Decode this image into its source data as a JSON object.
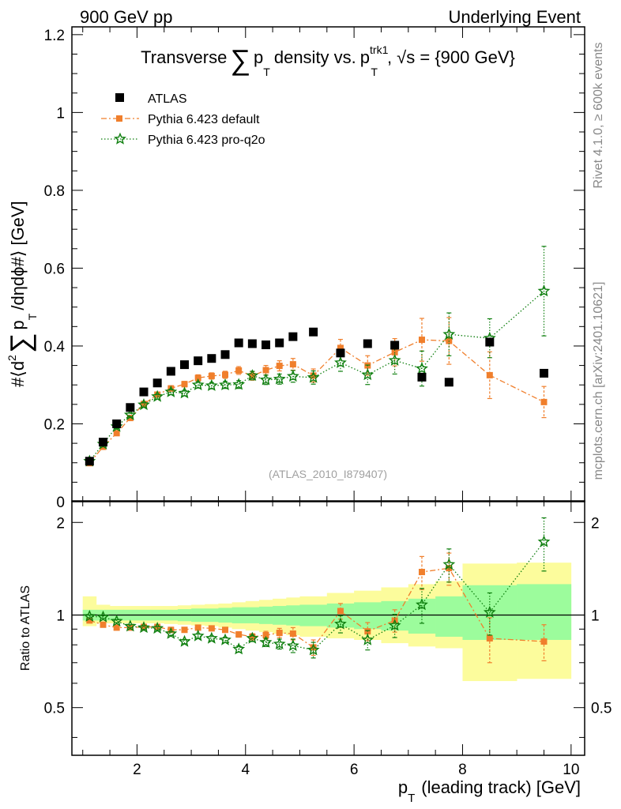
{
  "header": {
    "left": "900 GeV pp",
    "right": "Underlying Event"
  },
  "side": {
    "rivet": "Rivet 4.1.0, ≥ 600k events",
    "mcplots": "mcplots.cern.ch [arXiv:2401.10621]"
  },
  "chart_data": [
    {
      "type": "scatter",
      "title": {
        "prefix": "Transverse",
        "sum_symbol": "∑",
        "var": "p",
        "var_sub": "T",
        "middle": "density vs.",
        "lead": "p",
        "lead_sub": "T",
        "lead_sup": "trk1",
        "sqrt_symbol": "√",
        "energy": "s = {900 GeV}"
      },
      "ylabel": {
        "prefix": "#⟨d",
        "sq": "2",
        "sum_symbol": "∑",
        "var": "p",
        "var_sub": "T",
        "suffix": "/dηdϕ#⟩ [GeV]"
      },
      "xlim": [
        0.8,
        10.25
      ],
      "ylim": [
        0,
        1.22
      ],
      "yticks": [
        {
          "v": 0,
          "label": "0"
        },
        {
          "v": 0.2,
          "label": "0.2"
        },
        {
          "v": 0.4,
          "label": "0.4"
        },
        {
          "v": 0.6,
          "label": "0.6"
        },
        {
          "v": 0.8,
          "label": "0.8"
        },
        {
          "v": 1.0,
          "label": "1"
        },
        {
          "v": 1.2,
          "label": "1.2"
        }
      ],
      "watermark": "(ATLAS_2010_I879407)",
      "legend": {
        "position": "top-left",
        "entries": [
          "ATLAS",
          "Pythia 6.423 default",
          "Pythia 6.423 pro-q2o"
        ]
      },
      "series": [
        {
          "name": "ATLAS",
          "color": "#000000",
          "marker": "square",
          "x": [
            1.125,
            1.375,
            1.625,
            1.875,
            2.125,
            2.375,
            2.625,
            2.875,
            3.125,
            3.375,
            3.625,
            3.875,
            4.125,
            4.375,
            4.625,
            4.875,
            5.25,
            5.75,
            6.25,
            6.75,
            7.25,
            7.75,
            8.5,
            9.5
          ],
          "values": [
            0.104,
            0.153,
            0.2,
            0.242,
            0.282,
            0.305,
            0.335,
            0.352,
            0.362,
            0.368,
            0.378,
            0.408,
            0.406,
            0.403,
            0.408,
            0.424,
            0.436,
            0.382,
            0.406,
            0.402,
            0.32,
            0.307,
            0.41,
            0.33
          ]
        },
        {
          "name": "Pythia 6.423 default",
          "color": "#f07f2c",
          "marker": "square",
          "line": "dashdot",
          "x": [
            1.125,
            1.375,
            1.625,
            1.875,
            2.125,
            2.375,
            2.625,
            2.875,
            3.125,
            3.375,
            3.625,
            3.875,
            4.125,
            4.375,
            4.625,
            4.875,
            5.25,
            5.75,
            6.25,
            6.75,
            7.25,
            7.75,
            8.5,
            9.5
          ],
          "values": [
            0.099,
            0.141,
            0.176,
            0.215,
            0.251,
            0.275,
            0.291,
            0.302,
            0.318,
            0.323,
            0.326,
            0.337,
            0.323,
            0.338,
            0.349,
            0.353,
            0.324,
            0.395,
            0.35,
            0.384,
            0.416,
            0.413,
            0.325,
            0.256
          ],
          "errors": [
            0.004,
            0.004,
            0.005,
            0.005,
            0.006,
            0.006,
            0.007,
            0.007,
            0.008,
            0.008,
            0.009,
            0.01,
            0.011,
            0.012,
            0.013,
            0.015,
            0.017,
            0.022,
            0.025,
            0.035,
            0.055,
            0.06,
            0.06,
            0.04
          ]
        },
        {
          "name": "Pythia 6.423 pro-q2o",
          "color": "#0f7f0f",
          "marker": "star",
          "line": "dotted",
          "x": [
            1.125,
            1.375,
            1.625,
            1.875,
            2.125,
            2.375,
            2.625,
            2.875,
            3.125,
            3.375,
            3.625,
            3.875,
            4.125,
            4.375,
            4.625,
            4.875,
            5.25,
            5.75,
            6.25,
            6.75,
            7.25,
            7.75,
            8.5,
            9.5
          ],
          "values": [
            0.104,
            0.148,
            0.193,
            0.223,
            0.249,
            0.27,
            0.282,
            0.279,
            0.3,
            0.298,
            0.3,
            0.301,
            0.324,
            0.313,
            0.315,
            0.322,
            0.319,
            0.357,
            0.326,
            0.363,
            0.342,
            0.43,
            0.42,
            0.541
          ],
          "errors": [
            0.004,
            0.004,
            0.005,
            0.005,
            0.006,
            0.006,
            0.007,
            0.007,
            0.008,
            0.008,
            0.009,
            0.01,
            0.011,
            0.012,
            0.013,
            0.015,
            0.017,
            0.022,
            0.025,
            0.035,
            0.045,
            0.055,
            0.05,
            0.115
          ]
        }
      ]
    },
    {
      "type": "scatter",
      "ylabel": "Ratio to ATLAS",
      "xlabel": "p",
      "xlabel_sub": "T",
      "xlabel_suffix": "(leading track) [GeV]",
      "xlim": [
        0.8,
        10.25
      ],
      "ylim": [
        0.35,
        2.35
      ],
      "log_y": true,
      "xticks": [
        {
          "v": 2,
          "label": "2"
        },
        {
          "v": 4,
          "label": "4"
        },
        {
          "v": 6,
          "label": "6"
        },
        {
          "v": 8,
          "label": "8"
        },
        {
          "v": 10,
          "label": "10"
        }
      ],
      "yticks": [
        {
          "v": 0.5,
          "label": "0.5"
        },
        {
          "v": 1,
          "label": "1"
        },
        {
          "v": 2,
          "label": "2"
        }
      ],
      "bands": {
        "edges": [
          1.0,
          1.25,
          1.5,
          1.75,
          2.0,
          2.25,
          2.5,
          2.75,
          3.0,
          3.25,
          3.5,
          3.75,
          4.0,
          4.25,
          4.5,
          4.75,
          5.0,
          5.5,
          6.0,
          6.5,
          7.0,
          7.5,
          8.0,
          9.0,
          10.0
        ],
        "stat_low": [
          0.96,
          0.96,
          0.96,
          0.96,
          0.96,
          0.96,
          0.96,
          0.955,
          0.95,
          0.95,
          0.945,
          0.94,
          0.94,
          0.935,
          0.93,
          0.925,
          0.92,
          0.91,
          0.9,
          0.89,
          0.87,
          0.85,
          0.83,
          0.83
        ],
        "stat_high": [
          1.04,
          1.04,
          1.04,
          1.04,
          1.04,
          1.04,
          1.04,
          1.045,
          1.05,
          1.05,
          1.055,
          1.06,
          1.06,
          1.065,
          1.07,
          1.075,
          1.08,
          1.09,
          1.1,
          1.11,
          1.13,
          1.15,
          1.25,
          1.26
        ],
        "sys_low": [
          0.92,
          0.94,
          0.94,
          0.94,
          0.94,
          0.94,
          0.935,
          0.93,
          0.925,
          0.92,
          0.91,
          0.9,
          0.89,
          0.88,
          0.87,
          0.86,
          0.85,
          0.84,
          0.83,
          0.81,
          0.79,
          0.78,
          0.61,
          0.62
        ],
        "sys_high": [
          1.15,
          1.08,
          1.07,
          1.07,
          1.07,
          1.07,
          1.07,
          1.075,
          1.08,
          1.085,
          1.09,
          1.1,
          1.11,
          1.12,
          1.13,
          1.14,
          1.15,
          1.18,
          1.2,
          1.23,
          1.26,
          1.29,
          1.47,
          1.48
        ]
      },
      "series": [
        {
          "name": "Pythia 6.423 default",
          "color": "#f07f2c",
          "x": [
            1.125,
            1.375,
            1.625,
            1.875,
            2.125,
            2.375,
            2.625,
            2.875,
            3.125,
            3.375,
            3.625,
            3.875,
            4.125,
            4.375,
            4.625,
            4.875,
            5.25,
            5.75,
            6.25,
            6.75,
            7.25,
            7.75,
            8.5,
            9.5
          ],
          "values": [
            0.96,
            0.93,
            0.91,
            0.91,
            0.915,
            0.915,
            0.895,
            0.895,
            0.91,
            0.905,
            0.895,
            0.865,
            0.85,
            0.86,
            0.875,
            0.87,
            0.785,
            1.03,
            0.885,
            0.96,
            1.38,
            1.42,
            0.84,
            0.82
          ],
          "errors": [
            0.01,
            0.01,
            0.01,
            0.01,
            0.012,
            0.012,
            0.012,
            0.013,
            0.014,
            0.015,
            0.016,
            0.018,
            0.02,
            0.025,
            0.03,
            0.04,
            0.045,
            0.06,
            0.06,
            0.08,
            0.17,
            0.17,
            0.14,
            0.11
          ]
        },
        {
          "name": "Pythia 6.423 pro-q2o",
          "color": "#0f7f0f",
          "x": [
            1.125,
            1.375,
            1.625,
            1.875,
            2.125,
            2.375,
            2.625,
            2.875,
            3.125,
            3.375,
            3.625,
            3.875,
            4.125,
            4.375,
            4.625,
            4.875,
            5.25,
            5.75,
            6.25,
            6.75,
            7.25,
            7.75,
            8.5,
            9.5
          ],
          "values": [
            0.99,
            0.985,
            0.955,
            0.92,
            0.91,
            0.905,
            0.87,
            0.82,
            0.855,
            0.84,
            0.83,
            0.775,
            0.84,
            0.815,
            0.805,
            0.795,
            0.77,
            0.935,
            0.83,
            0.925,
            1.08,
            1.46,
            1.02,
            1.73
          ],
          "errors": [
            0.01,
            0.01,
            0.01,
            0.01,
            0.012,
            0.012,
            0.012,
            0.013,
            0.014,
            0.015,
            0.016,
            0.018,
            0.02,
            0.025,
            0.03,
            0.04,
            0.045,
            0.06,
            0.06,
            0.08,
            0.14,
            0.18,
            0.16,
            0.34
          ]
        }
      ]
    }
  ]
}
